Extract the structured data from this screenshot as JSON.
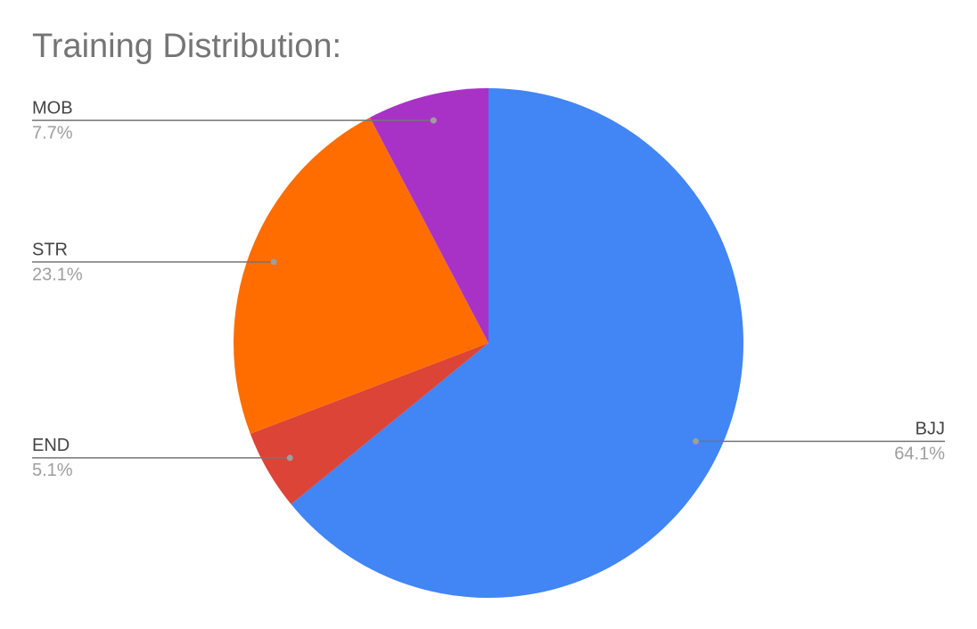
{
  "chart_data": {
    "type": "pie",
    "title": "Training Distribution:",
    "categories": [
      "BJJ",
      "END",
      "STR",
      "MOB"
    ],
    "values": [
      64.1,
      5.1,
      23.1,
      7.7
    ],
    "value_labels": [
      "64.1%",
      "5.1%",
      "23.1%",
      "7.7%"
    ],
    "colors": [
      "#4285f4",
      "#db4437",
      "#ff6d01",
      "#a832c6"
    ]
  }
}
